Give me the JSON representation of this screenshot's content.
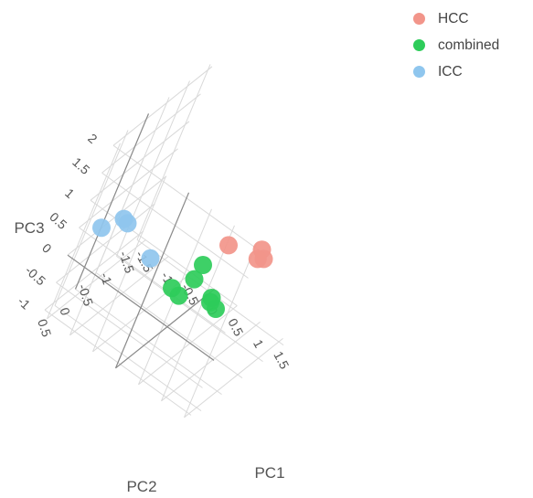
{
  "chart_data": {
    "type": "scatter3d",
    "axes": {
      "x": {
        "label": "PC1",
        "ticks": [
          "-1.5",
          "-1",
          "-0.5",
          "0",
          "0.5",
          "1",
          "1.5"
        ]
      },
      "y": {
        "label": "PC2",
        "ticks": [
          "-1.5",
          "-1",
          "-0.5",
          "0",
          "0.5"
        ]
      },
      "z": {
        "label": "PC3",
        "ticks": [
          "-1",
          "-0.5",
          "0",
          "0.5",
          "1",
          "1.5",
          "2"
        ]
      }
    },
    "legend_position": "top-right",
    "grid": true,
    "series": [
      {
        "name": "HCC",
        "color": "#f2958a",
        "points": [
          [
            1.4,
            0.3,
            1.6
          ],
          [
            1.45,
            0.2,
            1.4
          ],
          [
            1.3,
            0.1,
            1.25
          ],
          [
            0.9,
            0.5,
            1.5
          ]
        ]
      },
      {
        "name": "combined",
        "color": "#2ecc5a",
        "points": [
          [
            0.1,
            -0.6,
            0.0
          ],
          [
            0.1,
            -0.5,
            -0.2
          ],
          [
            0.0,
            -0.4,
            -0.5
          ],
          [
            0.2,
            -1.2,
            -0.9
          ],
          [
            0.3,
            -1.3,
            -1.1
          ],
          [
            0.3,
            -1.0,
            -0.8
          ],
          [
            -0.4,
            -0.9,
            -0.9
          ]
        ]
      },
      {
        "name": "ICC",
        "color": "#8fc6ee",
        "points": [
          [
            -1.0,
            0.6,
            0.9
          ],
          [
            -1.0,
            0.4,
            0.7
          ],
          [
            -1.5,
            0.2,
            0.2
          ],
          [
            -0.6,
            -0.1,
            0.0
          ]
        ]
      }
    ]
  }
}
